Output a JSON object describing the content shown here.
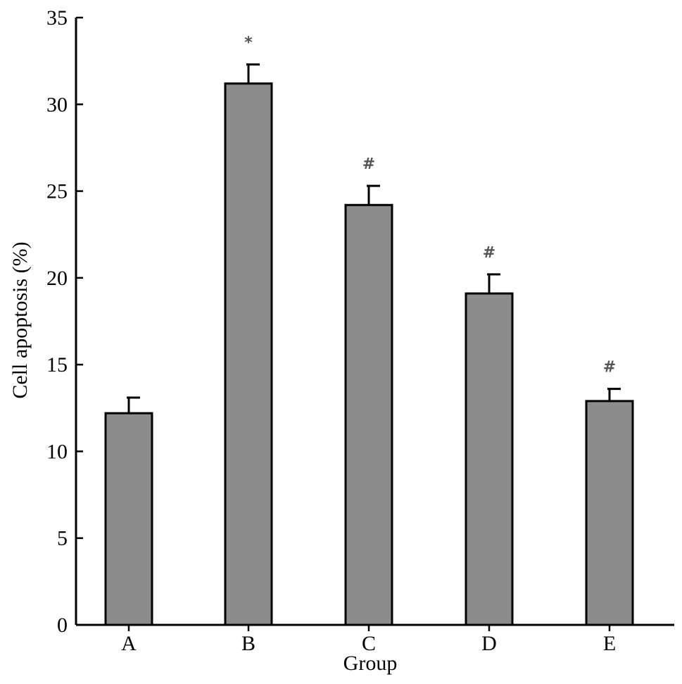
{
  "chart_data": {
    "type": "bar",
    "title": "",
    "xlabel": "Group",
    "ylabel": "Cell apoptosis (%)",
    "categories": [
      "A",
      "B",
      "C",
      "D",
      "E"
    ],
    "values": [
      12.2,
      31.2,
      24.2,
      19.1,
      12.9
    ],
    "error": [
      0.9,
      1.1,
      1.1,
      1.1,
      0.7
    ],
    "significance": [
      "",
      "*",
      "#",
      "#",
      "#"
    ],
    "ylim": [
      0,
      35
    ],
    "yticks": [
      0,
      5,
      10,
      15,
      20,
      25,
      30,
      35
    ],
    "grid": false,
    "legend": "none",
    "bar_color": "#8c8c8c",
    "edge_color": "#000000"
  }
}
